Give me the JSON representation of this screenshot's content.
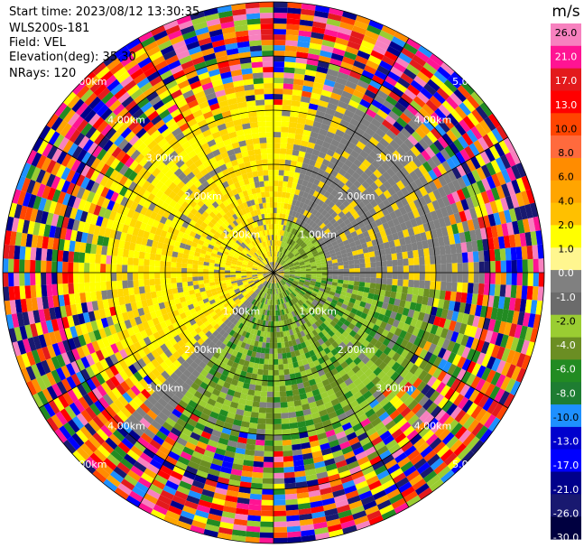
{
  "header": {
    "start_time": "Start time: 2023/08/12 13:30:35",
    "instrument": "WLS200s-181",
    "field": "Field: VEL",
    "elevation": "Elevation(deg): 35.30",
    "nrays": "NRays: 120"
  },
  "chart_data": {
    "type": "heatmap",
    "projection": "polar-ppi",
    "field": "VEL",
    "units": "m/s",
    "elevation_deg": 35.3,
    "nrays": 120,
    "range_rings_km": [
      1.0,
      2.0,
      3.0,
      4.0,
      5.0
    ],
    "ring_labels": [
      "1.00km",
      "2.00km",
      "3.00km",
      "4.00km",
      "5.00km"
    ],
    "max_range_km": 5.0,
    "grid": true,
    "colorbar": {
      "placement": "right",
      "unit_label": "m/s",
      "ticks": [
        "26.0",
        "21.0",
        "17.0",
        "13.0",
        "10.0",
        "8.0",
        "6.0",
        "4.0",
        "2.0",
        "1.0",
        "0.0",
        "-1.0",
        "-2.0",
        "-4.0",
        "-6.0",
        "-8.0",
        "-10.0",
        "-13.0",
        "-17.0",
        "-21.0",
        "-26.0",
        "-30.0"
      ],
      "colors": [
        "#f781bf",
        "#ff1493",
        "#e31a1c",
        "#ff0000",
        "#ff4500",
        "#ff6a3d",
        "#ff8c00",
        "#ffa500",
        "#ffc000",
        "#ffff00",
        "#fff68f",
        "#808080",
        "#6b6b6b",
        "#9acd32",
        "#6b8e23",
        "#228b22",
        "#1e7d32",
        "#1e90ff",
        "#0000cd",
        "#0000ff",
        "#00008b",
        "#191970",
        "#000040"
      ]
    },
    "velocity_pattern": [
      {
        "sector": "west-northwest",
        "range_km": [
          0.4,
          3.0
        ],
        "typical_velocity_ms": 2.0
      },
      {
        "sector": "southeast",
        "range_km": [
          0.4,
          3.0
        ],
        "typical_velocity_ms": -2.0
      },
      {
        "sector": "northeast",
        "range_km": [
          0.6,
          2.8
        ],
        "typical_velocity_ms": 0.0
      },
      {
        "sector": "southwest",
        "range_km": [
          0.6,
          2.8
        ],
        "typical_velocity_ms": 0.0
      },
      {
        "sector": "all",
        "range_km": [
          4.0,
          5.0
        ],
        "typical_velocity_ms": null
      }
    ]
  }
}
